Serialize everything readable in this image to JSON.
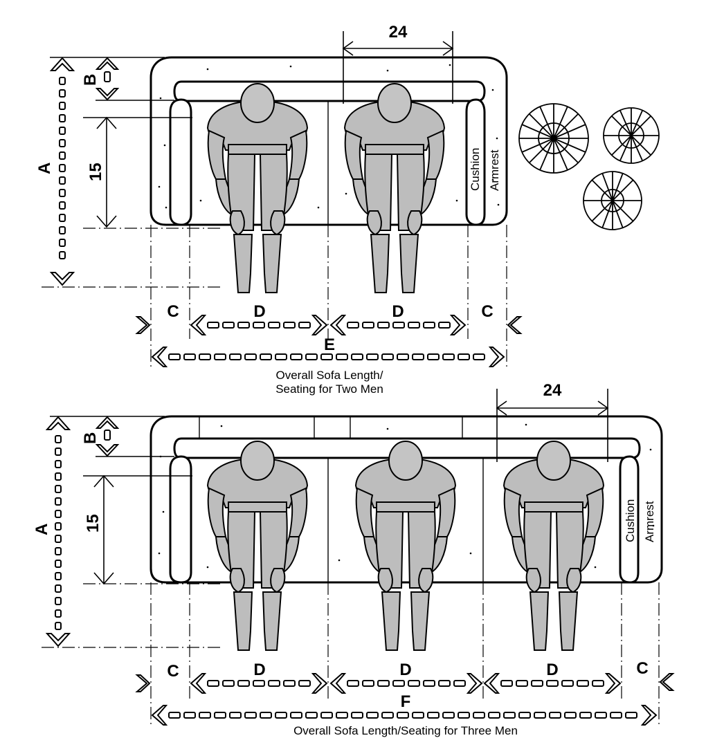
{
  "diagram_1": {
    "label_a": "A",
    "label_b": "B",
    "label_15": "15",
    "label_24": "24",
    "label_c_left": "C",
    "label_c_right": "C",
    "label_d_left": "D",
    "label_d_right": "D",
    "label_e": "E",
    "label_cushion": "Cushion",
    "label_armrest": "Armrest",
    "caption_line1": "Overall Sofa Length/",
    "caption_line2": "Seating for Two Men"
  },
  "diagram_2": {
    "label_a": "A",
    "label_b": "B",
    "label_15": "15",
    "label_24": "24",
    "label_c_left": "C",
    "label_c_right": "C",
    "label_d_1": "D",
    "label_d_2": "D",
    "label_d_3": "D",
    "label_f": "F",
    "label_cushion": "Cushion",
    "label_armrest": "Armrest",
    "caption": "Overall Sofa Length/Seating for Three Men"
  },
  "icons": {
    "plants": "potted-plants-icon",
    "figure": "seated-man-icon"
  }
}
